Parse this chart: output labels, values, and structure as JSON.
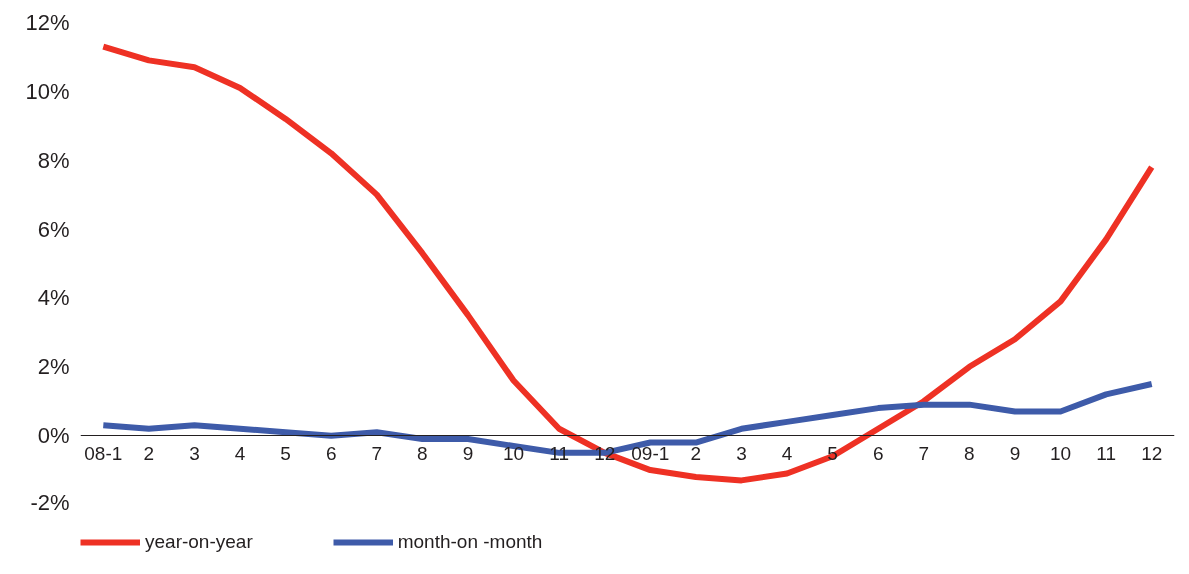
{
  "chart_data": {
    "type": "line",
    "categories": [
      "08-1",
      "2",
      "3",
      "4",
      "5",
      "6",
      "7",
      "8",
      "9",
      "10",
      "11",
      "12",
      "09-1",
      "2",
      "3",
      "4",
      "5",
      "6",
      "7",
      "8",
      "9",
      "10",
      "11",
      "12"
    ],
    "series": [
      {
        "name": "year-on-year",
        "color": "#ee3124",
        "values": [
          11.3,
          10.9,
          10.7,
          10.1,
          9.2,
          8.2,
          7.0,
          5.3,
          3.5,
          1.6,
          0.2,
          -0.5,
          -1.0,
          -1.2,
          -1.3,
          -1.1,
          -0.6,
          0.2,
          1.0,
          2.0,
          2.8,
          3.9,
          5.7,
          7.8
        ]
      },
      {
        "name": "month-on -month",
        "color": "#3e5ba9",
        "values": [
          0.3,
          0.2,
          0.3,
          0.2,
          0.1,
          0.0,
          0.1,
          -0.1,
          -0.1,
          -0.3,
          -0.5,
          -0.5,
          -0.2,
          -0.2,
          0.2,
          0.4,
          0.6,
          0.8,
          0.9,
          0.9,
          0.7,
          0.7,
          1.2,
          1.5
        ]
      }
    ],
    "ylim": [
      -2,
      12
    ],
    "yticks": [
      {
        "value": -2,
        "label": "-2%"
      },
      {
        "value": 0,
        "label": "0%"
      },
      {
        "value": 2,
        "label": "2%"
      },
      {
        "value": 4,
        "label": "4%"
      },
      {
        "value": 6,
        "label": "6%"
      },
      {
        "value": 8,
        "label": "8%"
      },
      {
        "value": 10,
        "label": "10%"
      },
      {
        "value": 12,
        "label": "12%"
      }
    ],
    "grid": false,
    "legend": "bottom left",
    "marker": "none",
    "line_style": "solid"
  }
}
